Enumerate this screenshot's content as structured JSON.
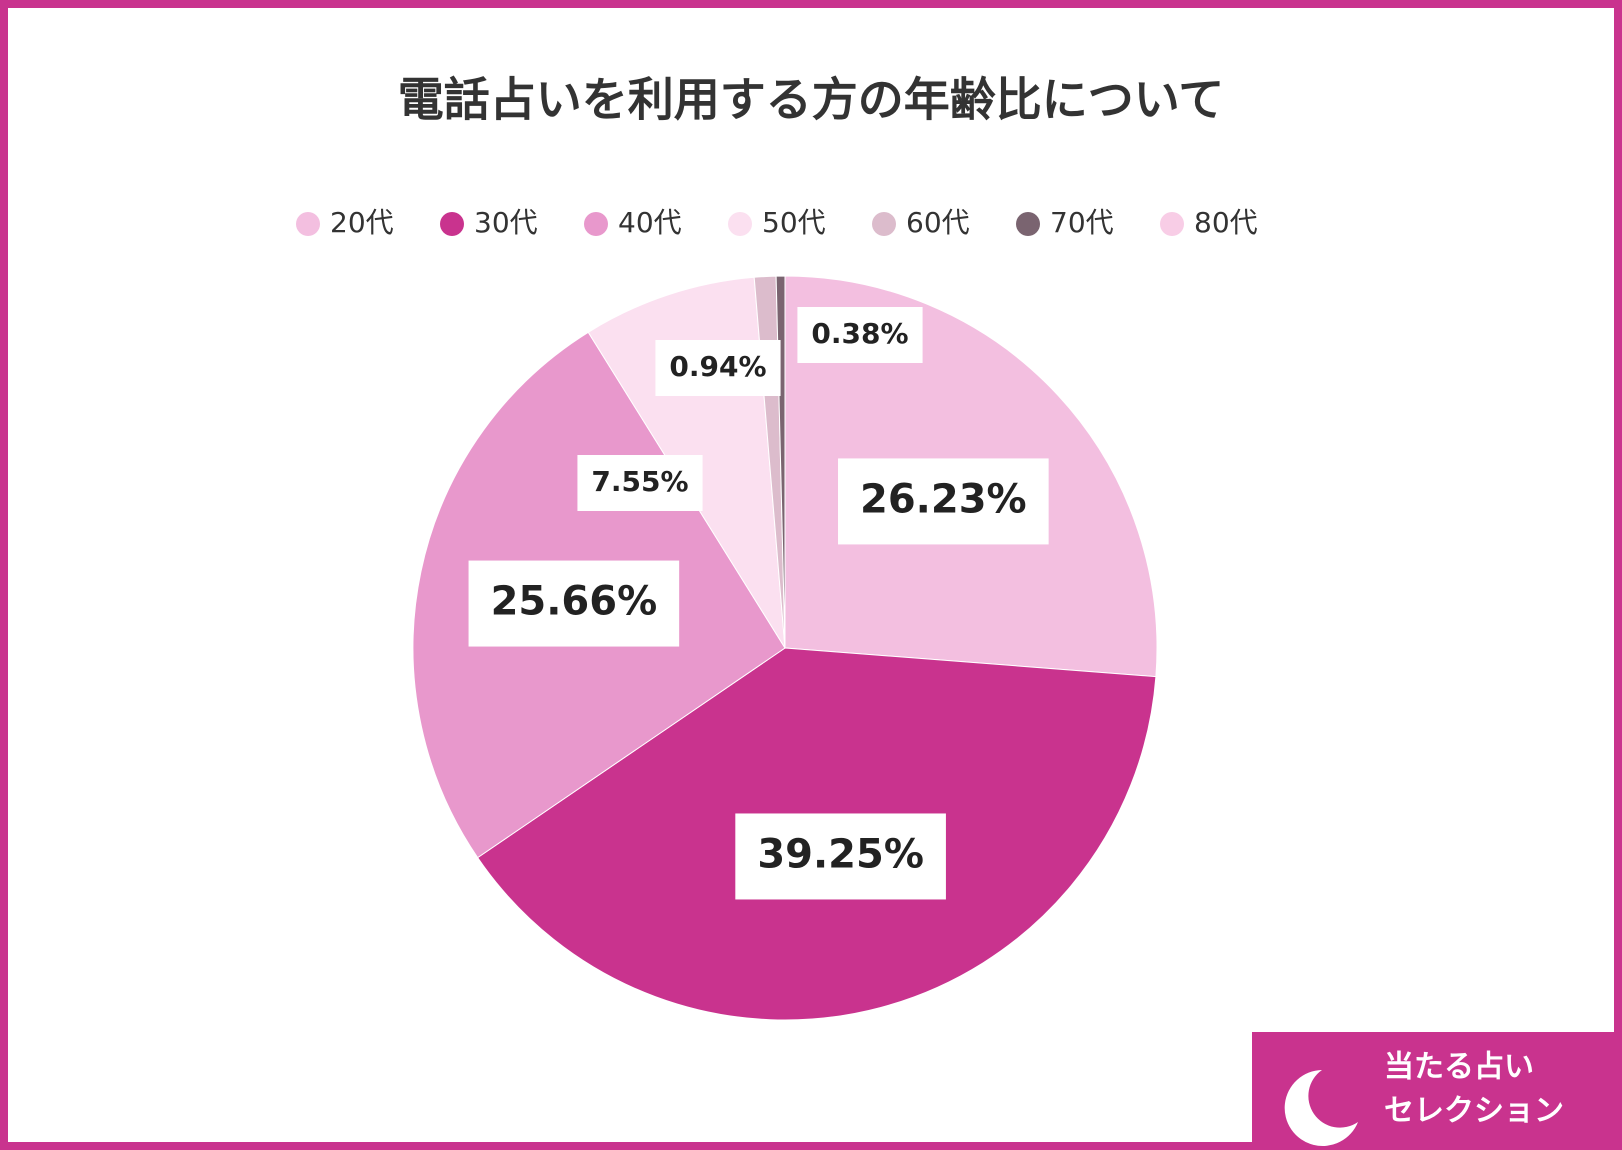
{
  "chart_data": {
    "type": "pie",
    "title": "電話占いを利用する方の年齢比について",
    "categories": [
      "20代",
      "30代",
      "40代",
      "50代",
      "60代",
      "70代",
      "80代"
    ],
    "values": [
      26.23,
      39.25,
      25.66,
      7.55,
      0.94,
      0.38,
      0
    ],
    "value_labels": [
      "26.23%",
      "39.25%",
      "25.66%",
      "7.55%",
      "0.94%",
      "0.38%",
      null
    ],
    "colors": [
      "#f3bfe0",
      "#c9338e",
      "#e898cc",
      "#fbe0f0",
      "#dcbccc",
      "#7a6470",
      "#f8cde6"
    ],
    "legend": "top"
  },
  "logo": {
    "line1": "当たる占い",
    "line2": "セレクション"
  }
}
